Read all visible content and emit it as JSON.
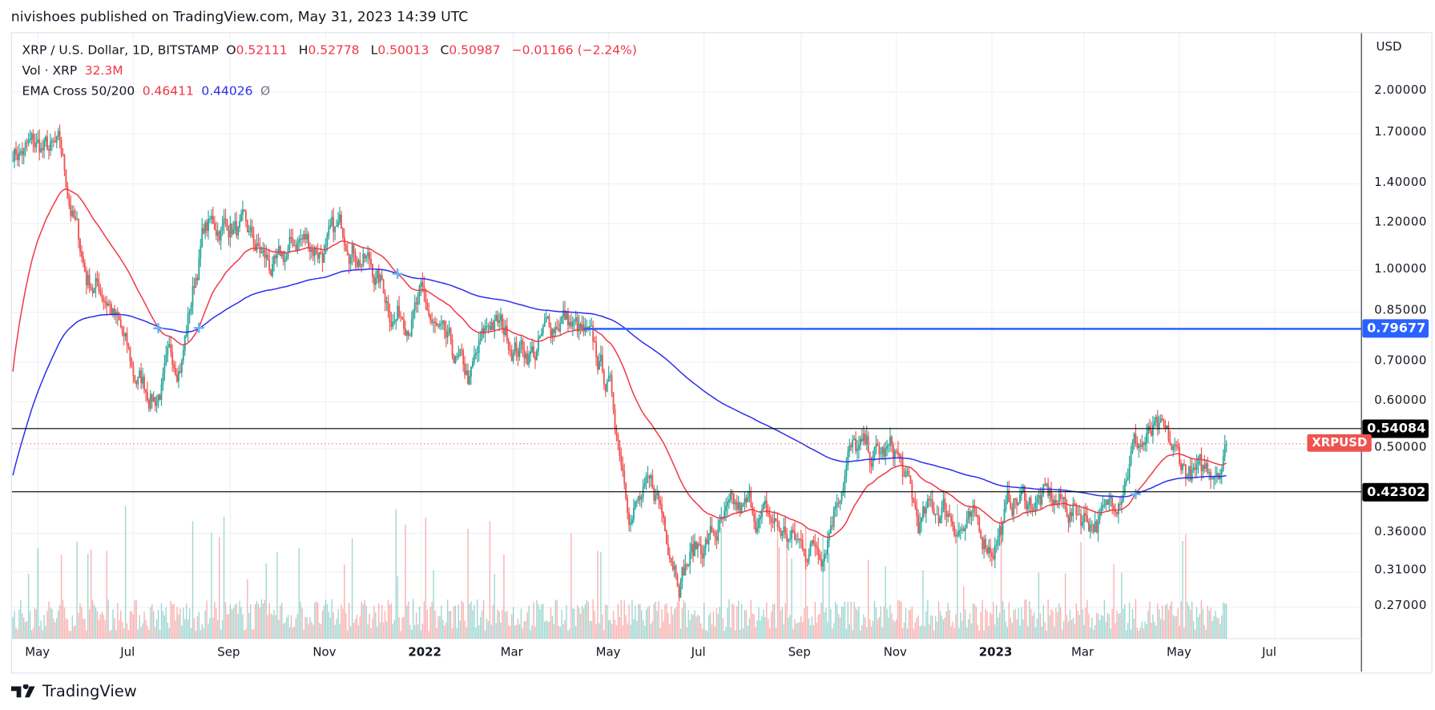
{
  "header": {
    "published": "nivishoes published on TradingView.com, May 31, 2023 14:39 UTC"
  },
  "legend": {
    "symbol": "XRP / U.S. Dollar, 1D, BITSTAMP",
    "o_label": "O",
    "o": "0.52111",
    "h_label": "H",
    "h": "0.52778",
    "l_label": "L",
    "l": "0.50013",
    "c_label": "C",
    "c": "0.50987",
    "change": "−0.01166 (−2.24%)",
    "vol_label": "Vol · XRP",
    "vol": "32.3M",
    "ema_label": "EMA Cross 50/200",
    "ema50": "0.46411",
    "ema200": "0.44026",
    "ema_symbol": "Ø"
  },
  "footer": {
    "logo_text": "TradingView"
  },
  "colors": {
    "up": "#26a69a",
    "down": "#ef5350",
    "ema50": "#f23645",
    "ema200": "#2a2eec",
    "hline_blue": "#2962ff",
    "cross": "#64b5f6"
  },
  "chart_data": {
    "type": "ohlc",
    "title": "XRP / U.S. Dollar, 1D, BITSTAMP",
    "y_scale": "log",
    "currency_label": "USD",
    "y_ticks": [
      "2.00000",
      "1.70000",
      "1.40000",
      "1.20000",
      "1.00000",
      "0.85000",
      "0.70000",
      "0.60000",
      "0.50000",
      "0.36000",
      "0.31000",
      "0.27000"
    ],
    "x_ticks": [
      {
        "label": "May",
        "date": "2021-05-01"
      },
      {
        "label": "Jul",
        "date": "2021-07-01"
      },
      {
        "label": "Sep",
        "date": "2021-09-01"
      },
      {
        "label": "Nov",
        "date": "2021-11-01"
      },
      {
        "label": "2022",
        "date": "2022-01-01",
        "bold": true
      },
      {
        "label": "Mar",
        "date": "2022-03-01"
      },
      {
        "label": "May",
        "date": "2022-05-01"
      },
      {
        "label": "Jul",
        "date": "2022-07-01"
      },
      {
        "label": "Sep",
        "date": "2022-09-01"
      },
      {
        "label": "Nov",
        "date": "2022-11-01"
      },
      {
        "label": "2023",
        "date": "2023-01-01",
        "bold": true
      },
      {
        "label": "Mar",
        "date": "2023-03-01"
      },
      {
        "label": "May",
        "date": "2023-05-01"
      },
      {
        "label": "Jul",
        "date": "2023-07-01"
      }
    ],
    "approx_closes": {
      "dates": [
        "2021-04-15",
        "2021-05-01",
        "2021-05-15",
        "2021-06-01",
        "2021-06-15",
        "2021-07-01",
        "2021-07-15",
        "2021-08-01",
        "2021-08-15",
        "2021-09-01",
        "2021-09-15",
        "2021-10-01",
        "2021-10-15",
        "2021-11-01",
        "2021-11-15",
        "2021-12-01",
        "2021-12-15",
        "2022-01-01",
        "2022-01-15",
        "2022-02-01",
        "2022-02-15",
        "2022-03-01",
        "2022-03-15",
        "2022-04-01",
        "2022-04-15",
        "2022-05-01",
        "2022-05-15",
        "2022-06-01",
        "2022-06-15",
        "2022-07-01",
        "2022-07-15",
        "2022-08-01",
        "2022-08-15",
        "2022-09-01",
        "2022-09-15",
        "2022-10-01",
        "2022-10-15",
        "2022-11-01",
        "2022-11-15",
        "2022-12-01",
        "2022-12-15",
        "2023-01-01",
        "2023-01-15",
        "2023-02-01",
        "2023-02-15",
        "2023-03-01",
        "2023-03-15",
        "2023-04-01",
        "2023-04-15",
        "2023-05-01",
        "2023-05-15",
        "2023-05-31"
      ],
      "values": [
        1.6,
        1.6,
        1.55,
        0.98,
        0.91,
        0.66,
        0.62,
        0.73,
        1.17,
        1.21,
        1.09,
        0.98,
        1.13,
        1.09,
        1.17,
        1.01,
        0.85,
        0.88,
        0.73,
        0.64,
        0.82,
        0.76,
        0.73,
        0.85,
        0.76,
        0.64,
        0.41,
        0.41,
        0.32,
        0.35,
        0.37,
        0.39,
        0.37,
        0.34,
        0.35,
        0.5,
        0.48,
        0.49,
        0.37,
        0.4,
        0.37,
        0.35,
        0.41,
        0.41,
        0.4,
        0.39,
        0.38,
        0.51,
        0.52,
        0.47,
        0.44,
        0.51
      ]
    },
    "horizontal_lines": [
      {
        "label": "0.79677",
        "value": 0.79677,
        "color": "#2962ff",
        "from_date": "2022-04-15"
      },
      {
        "label": "0.54084",
        "value": 0.54084,
        "color": "#000000"
      },
      {
        "label": "0.42302",
        "value": 0.42302,
        "color": "#000000"
      }
    ],
    "last_price": {
      "label": "XRPUSD",
      "value": 0.50987
    },
    "indicators": [
      "EMA 50",
      "EMA 200",
      "Volume"
    ]
  }
}
